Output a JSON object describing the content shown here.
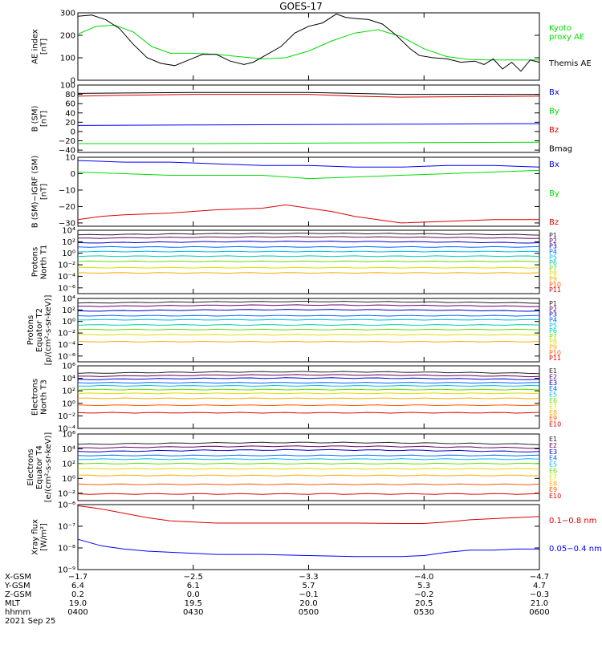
{
  "title": "GOES-17",
  "date": "2021 Sep 25",
  "colors": {
    "black": "#000000",
    "blue": "#0000ff",
    "green": "#00dd00",
    "red": "#dd0000",
    "ch": [
      "#222222",
      "#660066",
      "#0000cc",
      "#0066ff",
      "#00bbee",
      "#00ccaa",
      "#66dd00",
      "#dddd00",
      "#ffaa00",
      "#ff5500",
      "#dd0000"
    ]
  },
  "chart_data": [
    {
      "type": "line",
      "id": "ae",
      "ylabel": [
        "AE index",
        "[nT]"
      ],
      "ylim": [
        0,
        300
      ],
      "yticks": [
        {
          "v": 0,
          "t": "0"
        },
        {
          "v": 100,
          "t": "100"
        },
        {
          "v": 200,
          "t": "200"
        },
        {
          "v": 300,
          "t": "300"
        }
      ],
      "legend": [
        {
          "text": "Kyoto",
          "color": "#00dd00"
        },
        {
          "text": "proxy AE",
          "color": "#00dd00"
        },
        {
          "text": "Themis AE",
          "color": "#000000"
        }
      ],
      "series": [
        {
          "name": "Kyoto proxy AE",
          "color": "#00dd00",
          "x": [
            0,
            0.04,
            0.08,
            0.12,
            0.16,
            0.2,
            0.25,
            0.3,
            0.35,
            0.4,
            0.45,
            0.5,
            0.55,
            0.6,
            0.65,
            0.7,
            0.75,
            0.8,
            0.85,
            0.9,
            0.95,
            1.0
          ],
          "y": [
            205,
            240,
            245,
            215,
            150,
            120,
            120,
            115,
            105,
            95,
            100,
            130,
            175,
            210,
            225,
            195,
            140,
            105,
            92,
            90,
            90,
            90
          ]
        },
        {
          "name": "Themis AE",
          "color": "#000000",
          "x": [
            0,
            0.03,
            0.06,
            0.09,
            0.12,
            0.15,
            0.18,
            0.21,
            0.24,
            0.27,
            0.3,
            0.33,
            0.36,
            0.38,
            0.41,
            0.44,
            0.47,
            0.5,
            0.53,
            0.56,
            0.58,
            0.6,
            0.63,
            0.66,
            0.69,
            0.72,
            0.74,
            0.77,
            0.8,
            0.83,
            0.86,
            0.88,
            0.9,
            0.92,
            0.94,
            0.96,
            0.98,
            1.0
          ],
          "y": [
            285,
            290,
            270,
            230,
            160,
            100,
            75,
            65,
            90,
            115,
            115,
            85,
            70,
            80,
            115,
            150,
            210,
            240,
            255,
            295,
            280,
            275,
            270,
            250,
            200,
            140,
            110,
            100,
            95,
            80,
            85,
            70,
            95,
            50,
            80,
            40,
            90,
            80
          ]
        }
      ]
    },
    {
      "type": "line",
      "id": "bsm",
      "ylabel": [
        "B (SM)",
        "[nT]"
      ],
      "ylim": [
        -45,
        100
      ],
      "yticks": [
        {
          "v": -40,
          "t": "−40"
        },
        {
          "v": -20,
          "t": "−20"
        },
        {
          "v": 0,
          "t": "0"
        },
        {
          "v": 20,
          "t": "20"
        },
        {
          "v": 40,
          "t": "40"
        },
        {
          "v": 60,
          "t": "60"
        },
        {
          "v": 80,
          "t": "80"
        },
        {
          "v": 100,
          "t": "100"
        }
      ],
      "legend": [
        {
          "text": "Bx",
          "color": "#0000ff"
        },
        {
          "text": "By",
          "color": "#00dd00"
        },
        {
          "text": "Bz",
          "color": "#dd0000"
        },
        {
          "text": "Bmag",
          "color": "#000000"
        }
      ],
      "series": [
        {
          "name": "Bmag",
          "color": "#000000",
          "x": [
            0,
            0.25,
            0.5,
            0.7,
            1.0
          ],
          "y": [
            82,
            84,
            84,
            80,
            80
          ]
        },
        {
          "name": "Bz",
          "color": "#dd0000",
          "x": [
            0,
            0.1,
            0.25,
            0.5,
            0.6,
            0.7,
            0.85,
            1.0
          ],
          "y": [
            76,
            78,
            80,
            80,
            76,
            74,
            75,
            76
          ]
        },
        {
          "name": "Bx",
          "color": "#0000ff",
          "x": [
            0,
            0.25,
            0.5,
            0.75,
            1.0
          ],
          "y": [
            13,
            14,
            15,
            16,
            17
          ]
        },
        {
          "name": "By",
          "color": "#00dd00",
          "x": [
            0,
            0.25,
            0.5,
            0.75,
            1.0
          ],
          "y": [
            -26,
            -26,
            -25,
            -24,
            -23
          ]
        }
      ]
    },
    {
      "type": "line",
      "id": "digrf",
      "ylabel": [
        "B (SM)−IGRF (SM)",
        "[nT]"
      ],
      "ylim": [
        -32,
        10
      ],
      "yticks": [
        {
          "v": -30,
          "t": "−30"
        },
        {
          "v": -20,
          "t": "−20"
        },
        {
          "v": -10,
          "t": "−10"
        },
        {
          "v": 0,
          "t": "0"
        },
        {
          "v": 10,
          "t": "10"
        }
      ],
      "legend": [
        {
          "text": "Bx",
          "color": "#0000ff"
        },
        {
          "text": "By",
          "color": "#00dd00"
        },
        {
          "text": "Bz",
          "color": "#dd0000"
        }
      ],
      "series": [
        {
          "name": "Bx",
          "color": "#0000ff",
          "x": [
            0,
            0.1,
            0.2,
            0.3,
            0.4,
            0.5,
            0.6,
            0.7,
            0.8,
            0.9,
            1.0
          ],
          "y": [
            8,
            7,
            7,
            6,
            5,
            5,
            4,
            4,
            5,
            5,
            4
          ]
        },
        {
          "name": "By",
          "color": "#00dd00",
          "x": [
            0,
            0.1,
            0.2,
            0.3,
            0.4,
            0.5,
            0.6,
            0.7,
            0.8,
            0.9,
            1.0
          ],
          "y": [
            1,
            0,
            -1,
            -1,
            -1,
            -3,
            -2,
            -1,
            0,
            1,
            2
          ]
        },
        {
          "name": "Bz",
          "color": "#dd0000",
          "x": [
            0,
            0.05,
            0.1,
            0.2,
            0.3,
            0.4,
            0.45,
            0.5,
            0.55,
            0.6,
            0.7,
            0.8,
            0.9,
            1.0
          ],
          "y": [
            -28,
            -26,
            -25,
            -24,
            -22,
            -21,
            -19,
            -21,
            -23,
            -26,
            -30,
            -29,
            -28,
            -28
          ]
        }
      ]
    },
    {
      "type": "line",
      "id": "p1",
      "log": true,
      "ylabel": [
        "Protons",
        "North T1"
      ],
      "ylim": [
        -7,
        4
      ],
      "yticks": [
        {
          "v": 4,
          "t": "10⁴"
        },
        {
          "v": 2,
          "t": "10²"
        },
        {
          "v": 0,
          "t": "10⁰"
        },
        {
          "v": -2,
          "t": "10⁻²"
        },
        {
          "v": -4,
          "t": "10⁻⁴"
        },
        {
          "v": -6,
          "t": "10⁻⁶"
        }
      ],
      "legend": [
        "P1",
        "P2",
        "P3",
        "P4",
        "P5",
        "P6",
        "P7",
        "P8",
        "P9",
        "P10",
        "P11"
      ],
      "levels": [
        3.2,
        2.6,
        1.8,
        1.1,
        0.3,
        -0.5,
        -1.4,
        -2.5,
        -3.4,
        null,
        null
      ]
    },
    {
      "type": "line",
      "id": "p2",
      "log": true,
      "ylabel": [
        "Protons",
        "Equator T2",
        "[p/(cm²-s-sr-keV)]"
      ],
      "ylim": [
        -7,
        4
      ],
      "yticks": [
        {
          "v": 4,
          "t": "10⁴"
        },
        {
          "v": 2,
          "t": "10²"
        },
        {
          "v": 0,
          "t": "10⁰"
        },
        {
          "v": -2,
          "t": "10⁻²"
        },
        {
          "v": -4,
          "t": "10⁻⁴"
        },
        {
          "v": -6,
          "t": "10⁻⁶"
        }
      ],
      "legend": [
        "P1",
        "P2",
        "P3",
        "P4",
        "P5",
        "P6",
        "P7",
        "P8",
        "P9",
        "P10",
        "P11"
      ],
      "levels": [
        3.2,
        2.6,
        1.8,
        1.0,
        0.3,
        -0.6,
        -1.4,
        -2.3,
        -3.5,
        null,
        null
      ]
    },
    {
      "type": "line",
      "id": "e1",
      "log": true,
      "ylabel": [
        "Electrons",
        "North T3"
      ],
      "ylim": [
        -4,
        6
      ],
      "yticks": [
        {
          "v": 6,
          "t": "10⁶"
        },
        {
          "v": 4,
          "t": "10⁴"
        },
        {
          "v": 2,
          "t": "10²"
        },
        {
          "v": 0,
          "t": "10⁰"
        },
        {
          "v": -2,
          "t": "10⁻²"
        },
        {
          "v": -4,
          "t": "10⁻⁴"
        }
      ],
      "legend": [
        "E1",
        "E2",
        "E3",
        "E4",
        "E5",
        "E6",
        "E7",
        "E8",
        "E9",
        "E10"
      ],
      "levels": [
        4.8,
        4.3,
        3.8,
        3.3,
        2.8,
        2.2,
        1.6,
        0.8,
        -0.3,
        -1.5
      ]
    },
    {
      "type": "line",
      "id": "e2",
      "log": true,
      "ylabel": [
        "Electrons",
        "Equator T4",
        "[e/(cm²-s-sr-keV)]"
      ],
      "ylim": [
        -3,
        6
      ],
      "yticks": [
        {
          "v": 6,
          "t": "10⁶"
        },
        {
          "v": 4,
          "t": "10⁴"
        },
        {
          "v": 2,
          "t": "10²"
        },
        {
          "v": 0,
          "t": "10⁰"
        },
        {
          "v": -2,
          "t": "10⁻²"
        }
      ],
      "legend": [
        "E1",
        "E2",
        "E3",
        "E4",
        "E5",
        "E6",
        "E7",
        "E8",
        "E9",
        "E10"
      ],
      "levels": [
        4.6,
        4.1,
        3.6,
        3.1,
        2.6,
        2.0,
        1.3,
        0.4,
        -0.8,
        -2.1
      ]
    },
    {
      "type": "line",
      "id": "xray",
      "log": true,
      "ylabel": [
        "Xray flux",
        "[W/m²]"
      ],
      "ylim": [
        -9,
        -6
      ],
      "yticks": [
        {
          "v": -6,
          "t": "10⁻⁶"
        },
        {
          "v": -7,
          "t": "10⁻⁷"
        },
        {
          "v": -8,
          "t": "10⁻⁸"
        },
        {
          "v": -9,
          "t": "10⁻⁹"
        }
      ],
      "legend": [
        {
          "text": "0.1−0.8 nm",
          "color": "#dd0000"
        },
        {
          "text": "0.05−0.4 nm",
          "color": "#0000ff"
        }
      ],
      "series": [
        {
          "name": "0.1−0.8 nm",
          "color": "#dd0000",
          "x": [
            0,
            0.05,
            0.1,
            0.15,
            0.2,
            0.3,
            0.4,
            0.5,
            0.6,
            0.7,
            0.75,
            0.8,
            0.85,
            0.9,
            0.95,
            1.0
          ],
          "y": [
            -6.05,
            -6.2,
            -6.4,
            -6.6,
            -6.75,
            -6.85,
            -6.85,
            -6.85,
            -6.85,
            -6.87,
            -6.87,
            -6.8,
            -6.7,
            -6.65,
            -6.6,
            -6.55
          ]
        },
        {
          "name": "0.05−0.4 nm",
          "color": "#0000ff",
          "x": [
            0,
            0.05,
            0.1,
            0.15,
            0.2,
            0.3,
            0.4,
            0.5,
            0.6,
            0.7,
            0.75,
            0.8,
            0.85,
            0.9,
            0.95,
            1.0
          ],
          "y": [
            -7.6,
            -7.9,
            -8.05,
            -8.15,
            -8.2,
            -8.3,
            -8.3,
            -8.35,
            -8.4,
            -8.4,
            -8.35,
            -8.2,
            -8.1,
            -8.1,
            -8.05,
            -8.05
          ]
        }
      ]
    }
  ],
  "xaxis": {
    "ticks": [
      "0400",
      "0430",
      "0500",
      "0530",
      "0600"
    ],
    "rows": [
      {
        "label": "X-GSM",
        "values": [
          "−1.7",
          "−2.5",
          "−3.3",
          "−4.0",
          "−4.7"
        ]
      },
      {
        "label": "Y-GSM",
        "values": [
          "6.4",
          "6.1",
          "5.7",
          "5.3",
          "4.7"
        ]
      },
      {
        "label": "Z-GSM",
        "values": [
          "0.2",
          "0.0",
          "−0.1",
          "−0.2",
          "−0.3"
        ]
      },
      {
        "label": "MLT",
        "values": [
          "19.0",
          "19.5",
          "20.0",
          "20.5",
          "21.0"
        ]
      },
      {
        "label": "hhmm",
        "values": [
          "0400",
          "0430",
          "0500",
          "0530",
          "0600"
        ]
      }
    ]
  }
}
